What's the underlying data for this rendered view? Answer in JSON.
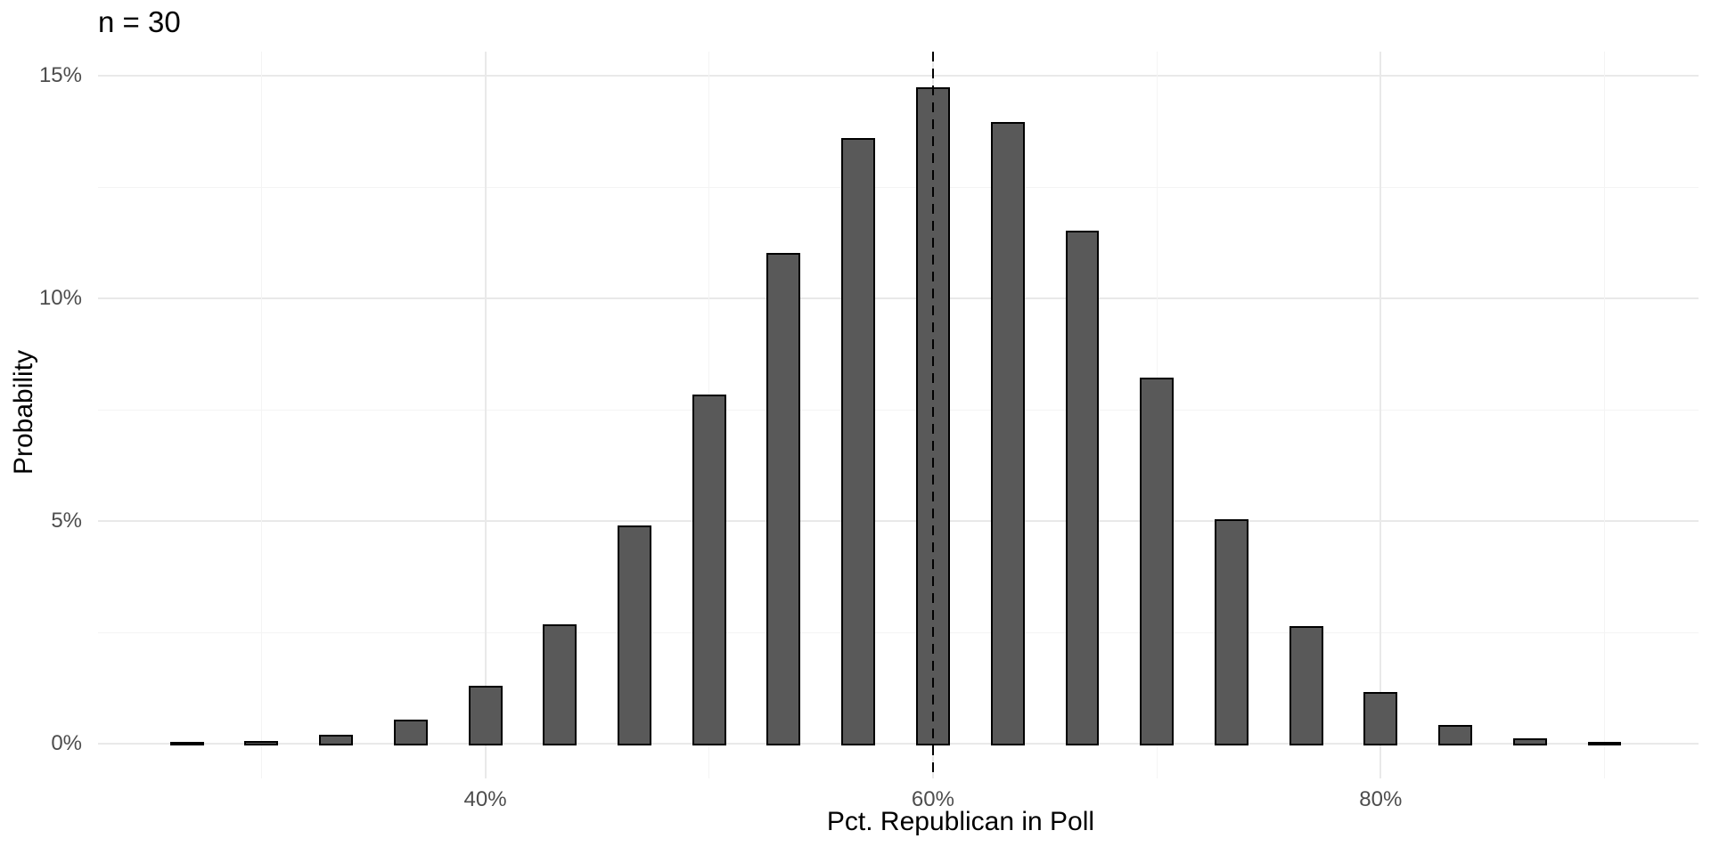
{
  "chart_data": {
    "type": "bar",
    "title": "n = 30",
    "xlabel": "Pct. Republican in Poll",
    "ylabel": "Probability",
    "x_unit": "percent",
    "y_unit": "percent",
    "x": [
      26.67,
      30,
      33.33,
      36.67,
      40,
      43.33,
      46.67,
      50,
      53.33,
      56.67,
      60,
      63.33,
      66.67,
      70,
      73.33,
      76.67,
      80,
      83.33,
      86.67,
      90
    ],
    "values": [
      0.017,
      0.063,
      0.2,
      0.545,
      1.294,
      2.687,
      4.894,
      7.831,
      11.013,
      13.605,
      14.738,
      13.962,
      11.519,
      8.228,
      5.049,
      2.634,
      1.152,
      0.415,
      0.12,
      0.027
    ],
    "bar_width_x_units": 1.51,
    "x_major_ticks": [
      {
        "value": 40,
        "label": "40%"
      },
      {
        "value": 60,
        "label": "60%"
      },
      {
        "value": 80,
        "label": "80%"
      }
    ],
    "x_minor_ticks": [
      30,
      50,
      70,
      90
    ],
    "y_major_ticks": [
      {
        "value": 0,
        "label": "0%"
      },
      {
        "value": 5,
        "label": "5%"
      },
      {
        "value": 10,
        "label": "10%"
      },
      {
        "value": 15,
        "label": "15%"
      }
    ],
    "y_minor_ticks": [
      2.5,
      7.5,
      12.5
    ],
    "reference_line_x": 60,
    "reference_line_style": "dashed",
    "xlim": [
      22.7,
      94.2
    ],
    "ylim": [
      -0.78,
      15.54
    ],
    "grid": true,
    "legend": "none",
    "colors": {
      "bar_fill": "#595959",
      "bar_outline": "#000000",
      "grid_major": "#e9e9e9",
      "grid_minor": "#f4f4f4",
      "tick_label": "#4d4d4d",
      "text": "#000000",
      "reference_line": "#000000",
      "background": "#ffffff"
    }
  }
}
